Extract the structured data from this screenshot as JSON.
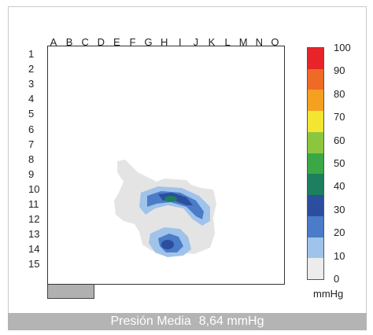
{
  "columns": [
    "A",
    "B",
    "C",
    "D",
    "E",
    "F",
    "G",
    "H",
    "I",
    "J",
    "K",
    "L",
    "M",
    "N",
    "O"
  ],
  "rows": [
    "1",
    "2",
    "3",
    "4",
    "5",
    "6",
    "7",
    "8",
    "9",
    "10",
    "11",
    "12",
    "13",
    "14",
    "15"
  ],
  "legend": {
    "ticks": [
      "100",
      "90",
      "80",
      "70",
      "60",
      "50",
      "40",
      "30",
      "20",
      "10",
      "0"
    ],
    "unit": "mmHg",
    "colors": [
      "#e8242a",
      "#ef6a26",
      "#f5a020",
      "#f2e632",
      "#8cc63f",
      "#3aa845",
      "#1c7f5f",
      "#2c4e9e",
      "#4a7cc8",
      "#9fc3ea",
      "#ececec"
    ]
  },
  "pressure_map": {
    "colors": {
      "low": "#e4e4e4",
      "mid": "#9fc3ea",
      "high": "#4a7cc8",
      "peak": "#2c4e9e",
      "core": "#1c7f5f"
    }
  },
  "footer": {
    "label": "Presión Media",
    "value": "8,64 mmHg"
  }
}
